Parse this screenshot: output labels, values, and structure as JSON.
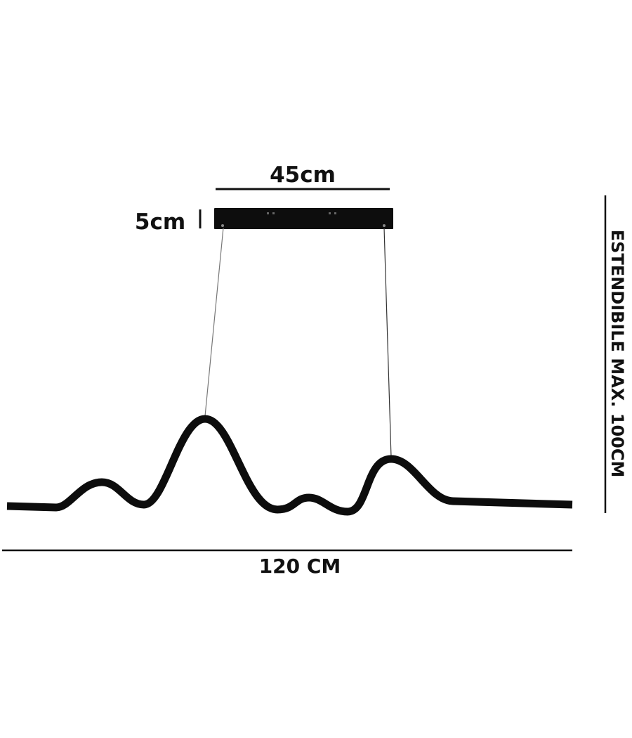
{
  "dimensions": {
    "canopy_width": "45cm",
    "canopy_height": "5cm",
    "total_width": "120 CM",
    "extendable_height": "ESTENDIBILE MAX. 100CM"
  },
  "colors": {
    "lamp": "#0d0d0d",
    "lines": "#111111",
    "wire": "#777777"
  }
}
